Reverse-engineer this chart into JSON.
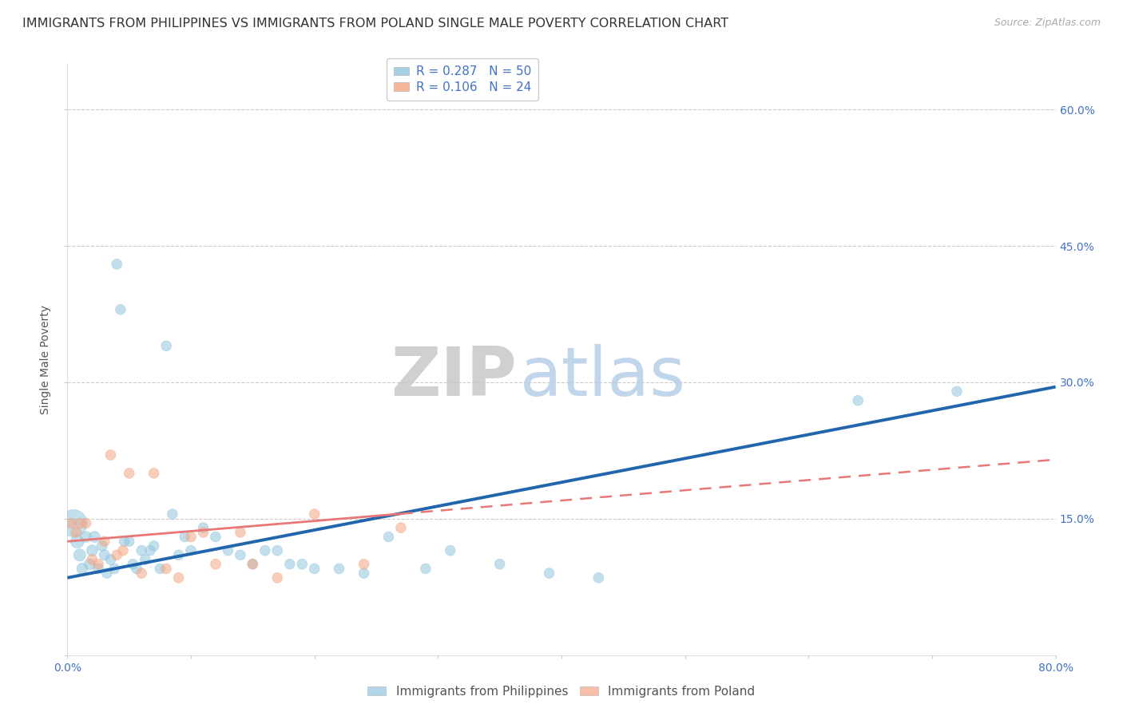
{
  "title": "IMMIGRANTS FROM PHILIPPINES VS IMMIGRANTS FROM POLAND SINGLE MALE POVERTY CORRELATION CHART",
  "source": "Source: ZipAtlas.com",
  "ylabel": "Single Male Poverty",
  "yticks": [
    0.0,
    0.15,
    0.3,
    0.45,
    0.6
  ],
  "ytick_labels": [
    "",
    "15.0%",
    "30.0%",
    "45.0%",
    "60.0%"
  ],
  "xlim": [
    0.0,
    0.8
  ],
  "ylim": [
    0.0,
    0.65
  ],
  "watermark_zip": "ZIP",
  "watermark_atlas": "atlas",
  "legend1_R": "R = 0.287",
  "legend1_N": "N = 50",
  "legend2_R": "R = 0.106",
  "legend2_N": "N = 24",
  "legend_label1": "Immigrants from Philippines",
  "legend_label2": "Immigrants from Poland",
  "philippines_color": "#92c5de",
  "poland_color": "#f4a582",
  "philippines_x": [
    0.005,
    0.008,
    0.01,
    0.012,
    0.015,
    0.018,
    0.02,
    0.022,
    0.025,
    0.028,
    0.03,
    0.032,
    0.035,
    0.038,
    0.04,
    0.043,
    0.046,
    0.05,
    0.053,
    0.056,
    0.06,
    0.063,
    0.067,
    0.07,
    0.075,
    0.08,
    0.085,
    0.09,
    0.095,
    0.1,
    0.11,
    0.12,
    0.13,
    0.14,
    0.15,
    0.16,
    0.17,
    0.18,
    0.19,
    0.2,
    0.22,
    0.24,
    0.26,
    0.29,
    0.31,
    0.35,
    0.39,
    0.43,
    0.64,
    0.72
  ],
  "philippines_y": [
    0.145,
    0.125,
    0.11,
    0.095,
    0.13,
    0.1,
    0.115,
    0.13,
    0.095,
    0.12,
    0.11,
    0.09,
    0.105,
    0.095,
    0.43,
    0.38,
    0.125,
    0.125,
    0.1,
    0.095,
    0.115,
    0.105,
    0.115,
    0.12,
    0.095,
    0.34,
    0.155,
    0.11,
    0.13,
    0.115,
    0.14,
    0.13,
    0.115,
    0.11,
    0.1,
    0.115,
    0.115,
    0.1,
    0.1,
    0.095,
    0.095,
    0.09,
    0.13,
    0.095,
    0.115,
    0.1,
    0.09,
    0.085,
    0.28,
    0.29
  ],
  "philippines_sizes": [
    600,
    150,
    120,
    100,
    100,
    100,
    100,
    100,
    90,
    90,
    90,
    85,
    85,
    85,
    85,
    85,
    85,
    85,
    85,
    85,
    85,
    85,
    85,
    85,
    85,
    85,
    85,
    85,
    85,
    85,
    85,
    85,
    85,
    85,
    85,
    85,
    85,
    85,
    85,
    85,
    85,
    85,
    85,
    85,
    85,
    85,
    85,
    85,
    85,
    85
  ],
  "poland_x": [
    0.003,
    0.007,
    0.01,
    0.015,
    0.02,
    0.025,
    0.03,
    0.035,
    0.04,
    0.045,
    0.05,
    0.06,
    0.07,
    0.08,
    0.09,
    0.1,
    0.11,
    0.12,
    0.14,
    0.15,
    0.17,
    0.2,
    0.24,
    0.27
  ],
  "poland_y": [
    0.145,
    0.135,
    0.145,
    0.145,
    0.105,
    0.1,
    0.125,
    0.22,
    0.11,
    0.115,
    0.2,
    0.09,
    0.2,
    0.095,
    0.085,
    0.13,
    0.135,
    0.1,
    0.135,
    0.1,
    0.085,
    0.155,
    0.1,
    0.14
  ],
  "poland_sizes": [
    85,
    85,
    85,
    85,
    85,
    85,
    85,
    85,
    85,
    85,
    85,
    85,
    85,
    85,
    85,
    85,
    85,
    85,
    85,
    85,
    85,
    85,
    85,
    85
  ],
  "phil_trend_x": [
    0.0,
    0.8
  ],
  "phil_trend_y": [
    0.085,
    0.295
  ],
  "poland_trend_x": [
    0.0,
    0.8
  ],
  "poland_trend_y": [
    0.125,
    0.215
  ],
  "phil_trend_solid_end": 0.8,
  "poland_trend_solid_end": 0.27,
  "background_color": "#ffffff",
  "grid_color": "#cccccc",
  "title_fontsize": 11.5,
  "source_fontsize": 9,
  "axis_fontsize": 10,
  "legend_fontsize": 11
}
